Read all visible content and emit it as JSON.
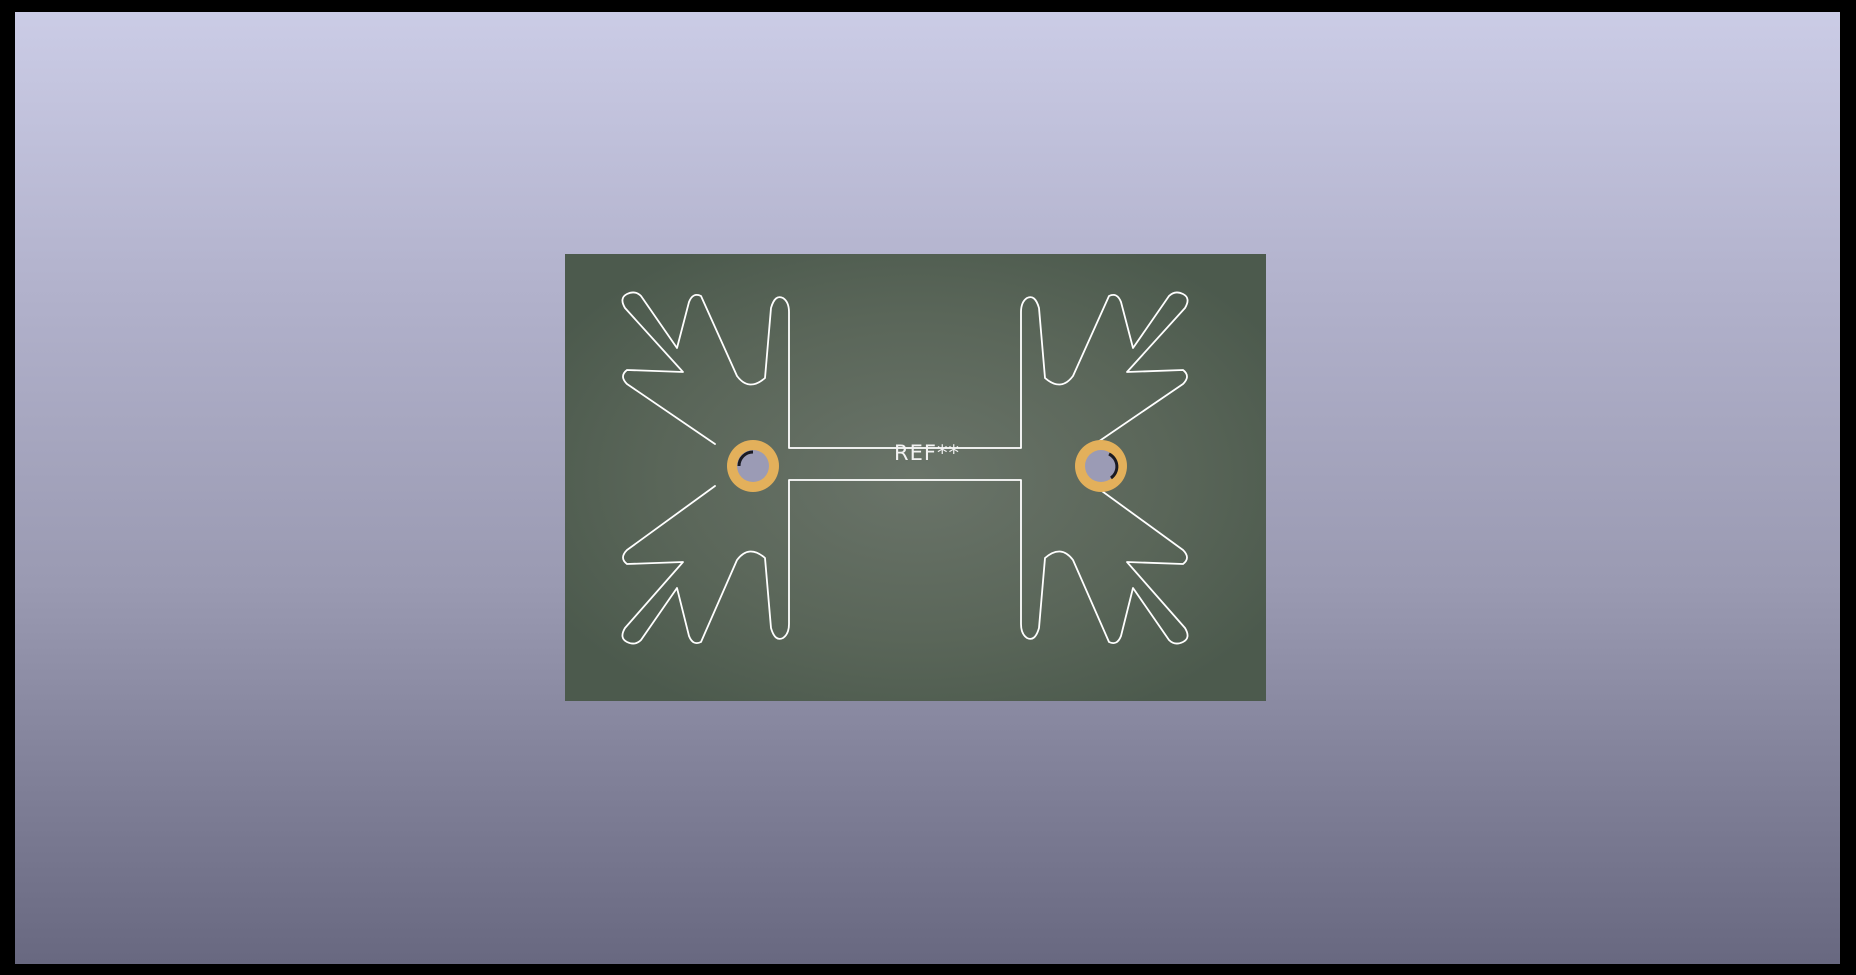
{
  "viewer": {
    "title": "",
    "background_top": "#cbcce6",
    "background_bottom": "#686880"
  },
  "board": {
    "substrate_color": "#4f5c50",
    "substrate_highlight": "#6a7469",
    "silkscreen_color": "#ffffff",
    "pad_color": "#e3b05b",
    "reference": "REF**"
  },
  "pads": [
    {
      "name": "left-pad"
    },
    {
      "name": "right-pad"
    }
  ]
}
